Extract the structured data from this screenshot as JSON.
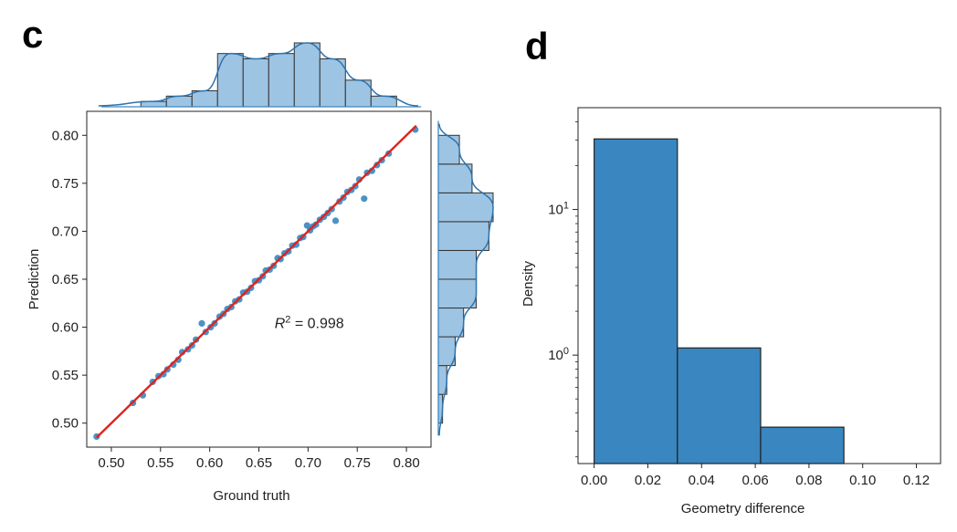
{
  "panels": {
    "left": "c",
    "right": "d"
  },
  "chart_data": [
    {
      "type": "scatter",
      "title": "",
      "xlabel": "Ground truth",
      "ylabel": "Prediction",
      "xlim": [
        0.475,
        0.825
      ],
      "ylim": [
        0.475,
        0.825
      ],
      "xticks": [
        0.5,
        0.55,
        0.6,
        0.65,
        0.7,
        0.75,
        0.8
      ],
      "yticks": [
        0.5,
        0.55,
        0.6,
        0.65,
        0.7,
        0.75,
        0.8
      ],
      "xtick_labels": [
        "0.50",
        "0.55",
        "0.60",
        "0.65",
        "0.70",
        "0.75",
        "0.80"
      ],
      "ytick_labels": [
        "0.50",
        "0.55",
        "0.60",
        "0.65",
        "0.70",
        "0.75",
        "0.80"
      ],
      "annotation": {
        "lhs": "R",
        "sup": "2",
        "rhs": " = 0.998"
      },
      "fit_line": {
        "color": "#e0231d",
        "from": [
          0.485,
          0.485
        ],
        "to": [
          0.81,
          0.81
        ]
      },
      "point_color": "#3a86c0",
      "points": [
        [
          0.485,
          0.486
        ],
        [
          0.522,
          0.521
        ],
        [
          0.532,
          0.529
        ],
        [
          0.542,
          0.543
        ],
        [
          0.548,
          0.549
        ],
        [
          0.553,
          0.551
        ],
        [
          0.557,
          0.556
        ],
        [
          0.563,
          0.561
        ],
        [
          0.568,
          0.566
        ],
        [
          0.572,
          0.574
        ],
        [
          0.578,
          0.577
        ],
        [
          0.582,
          0.581
        ],
        [
          0.586,
          0.587
        ],
        [
          0.592,
          0.604
        ],
        [
          0.596,
          0.595
        ],
        [
          0.601,
          0.6
        ],
        [
          0.605,
          0.604
        ],
        [
          0.61,
          0.611
        ],
        [
          0.614,
          0.614
        ],
        [
          0.618,
          0.619
        ],
        [
          0.622,
          0.621
        ],
        [
          0.626,
          0.627
        ],
        [
          0.63,
          0.629
        ],
        [
          0.634,
          0.636
        ],
        [
          0.638,
          0.637
        ],
        [
          0.642,
          0.641
        ],
        [
          0.646,
          0.648
        ],
        [
          0.65,
          0.649
        ],
        [
          0.654,
          0.653
        ],
        [
          0.657,
          0.659
        ],
        [
          0.661,
          0.66
        ],
        [
          0.665,
          0.664
        ],
        [
          0.669,
          0.672
        ],
        [
          0.672,
          0.671
        ],
        [
          0.676,
          0.677
        ],
        [
          0.68,
          0.679
        ],
        [
          0.684,
          0.685
        ],
        [
          0.688,
          0.686
        ],
        [
          0.692,
          0.693
        ],
        [
          0.695,
          0.694
        ],
        [
          0.699,
          0.706
        ],
        [
          0.702,
          0.701
        ],
        [
          0.705,
          0.705
        ],
        [
          0.708,
          0.707
        ],
        [
          0.712,
          0.712
        ],
        [
          0.716,
          0.715
        ],
        [
          0.72,
          0.719
        ],
        [
          0.724,
          0.723
        ],
        [
          0.728,
          0.711
        ],
        [
          0.732,
          0.731
        ],
        [
          0.736,
          0.735
        ],
        [
          0.74,
          0.741
        ],
        [
          0.744,
          0.743
        ],
        [
          0.748,
          0.747
        ],
        [
          0.752,
          0.754
        ],
        [
          0.757,
          0.734
        ],
        [
          0.76,
          0.761
        ],
        [
          0.765,
          0.763
        ],
        [
          0.77,
          0.769
        ],
        [
          0.775,
          0.774
        ],
        [
          0.782,
          0.781
        ],
        [
          0.809,
          0.806
        ]
      ],
      "marginal_x": {
        "bin_edges": [
          0.53,
          0.556,
          0.582,
          0.608,
          0.634,
          0.66,
          0.686,
          0.712,
          0.738,
          0.764,
          0.79
        ],
        "counts": [
          1,
          2,
          3,
          10,
          9,
          10,
          12,
          9,
          5,
          2
        ]
      },
      "marginal_y": {
        "bin_edges": [
          0.5,
          0.53,
          0.56,
          0.59,
          0.62,
          0.65,
          0.68,
          0.71,
          0.74,
          0.77,
          0.8
        ],
        "counts": [
          1,
          2,
          4,
          6,
          9,
          9,
          12,
          13,
          8,
          5
        ]
      }
    },
    {
      "type": "bar",
      "title": "",
      "xlabel": "Geometry difference",
      "ylabel": "Density",
      "yscale": "log",
      "xlim": [
        -0.006,
        0.129
      ],
      "ylim": [
        0.18,
        50
      ],
      "xticks": [
        0.0,
        0.02,
        0.04,
        0.06,
        0.08,
        0.1,
        0.12
      ],
      "xtick_labels": [
        "0.00",
        "0.02",
        "0.04",
        "0.06",
        "0.08",
        "0.10",
        "0.12"
      ],
      "yticks": [
        {
          "value": 10,
          "base": "10",
          "exp": "1"
        },
        {
          "value": 1,
          "base": "10",
          "exp": "0"
        }
      ],
      "bar_color": "#3a86c0",
      "bins": [
        {
          "x0": 0.0,
          "x1": 0.031,
          "density": 30.5
        },
        {
          "x0": 0.031,
          "x1": 0.062,
          "density": 1.12
        },
        {
          "x0": 0.062,
          "x1": 0.093,
          "density": 0.32
        }
      ]
    }
  ]
}
